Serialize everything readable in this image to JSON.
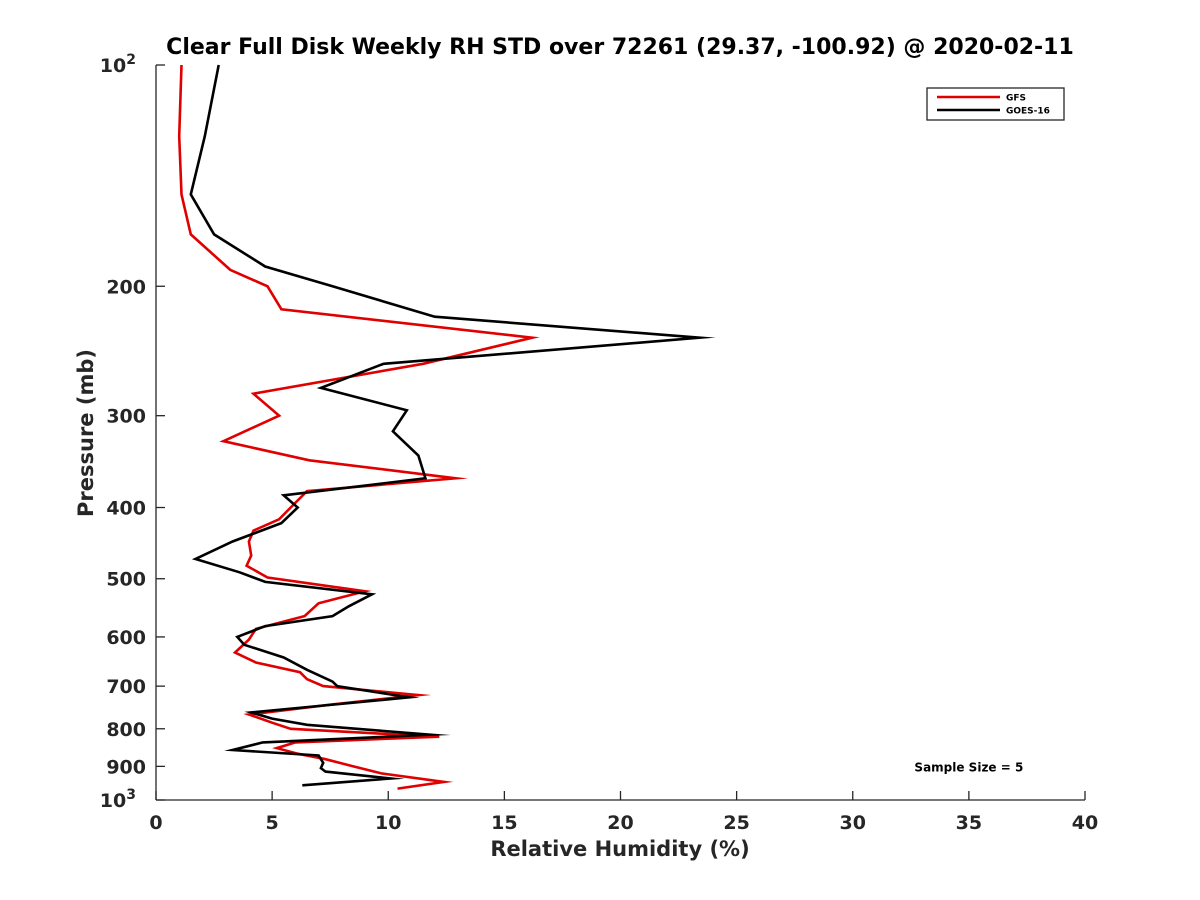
{
  "chart_data": {
    "type": "line",
    "title": "Clear Full Disk Weekly RH STD over 72261 (29.37, -100.92) @ 2020-02-11",
    "xlabel": "Relative Humidity (%)",
    "ylabel": "Pressure (mb)",
    "xlim": [
      0,
      40
    ],
    "ylim": [
      100,
      1000
    ],
    "y_scale": "log",
    "y_reversed": true,
    "grid": false,
    "legend_position": "top-right",
    "x_ticks": [
      0,
      5,
      10,
      15,
      20,
      25,
      30,
      35,
      40
    ],
    "x_tick_labels": [
      "0",
      "5",
      "10",
      "15",
      "20",
      "25",
      "30",
      "35",
      "40"
    ],
    "y_ticks": [
      {
        "value": 100,
        "base": "10",
        "exp": "2"
      },
      {
        "value": 200,
        "label": "200"
      },
      {
        "value": 300,
        "label": "300"
      },
      {
        "value": 400,
        "label": "400"
      },
      {
        "value": 500,
        "label": "500"
      },
      {
        "value": 600,
        "label": "600"
      },
      {
        "value": 700,
        "label": "700"
      },
      {
        "value": 800,
        "label": "800"
      },
      {
        "value": 900,
        "label": "900"
      },
      {
        "value": 1000,
        "base": "10",
        "exp": "3"
      }
    ],
    "series": [
      {
        "name": "GFS",
        "color": "#e00000",
        "points": [
          [
            1.1,
            100
          ],
          [
            1.0,
            125
          ],
          [
            1.1,
            150
          ],
          [
            1.5,
            170
          ],
          [
            3.2,
            190
          ],
          [
            4.8,
            200
          ],
          [
            5.4,
            215
          ],
          [
            16.2,
            235
          ],
          [
            11.5,
            255
          ],
          [
            4.2,
            280
          ],
          [
            5.3,
            300
          ],
          [
            2.9,
            325
          ],
          [
            6.6,
            345
          ],
          [
            12.9,
            365
          ],
          [
            6.5,
            380
          ],
          [
            5.8,
            400
          ],
          [
            5.3,
            415
          ],
          [
            4.2,
            430
          ],
          [
            4.0,
            445
          ],
          [
            4.1,
            465
          ],
          [
            3.9,
            480
          ],
          [
            4.8,
            498
          ],
          [
            9.0,
            520
          ],
          [
            7.0,
            540
          ],
          [
            6.4,
            562
          ],
          [
            4.3,
            585
          ],
          [
            4.0,
            605
          ],
          [
            3.4,
            630
          ],
          [
            4.3,
            650
          ],
          [
            6.2,
            670
          ],
          [
            6.5,
            685
          ],
          [
            7.2,
            700
          ],
          [
            11.3,
            720
          ],
          [
            7.5,
            742
          ],
          [
            4.0,
            765
          ],
          [
            5.0,
            785
          ],
          [
            5.8,
            800
          ],
          [
            12.2,
            820
          ],
          [
            6.0,
            835
          ],
          [
            5.2,
            850
          ],
          [
            6.1,
            865
          ],
          [
            7.3,
            880
          ],
          [
            8.5,
            900
          ],
          [
            9.7,
            920
          ],
          [
            12.4,
            945
          ],
          [
            10.4,
            965
          ]
        ]
      },
      {
        "name": "GOES-16",
        "color": "#000000",
        "points": [
          [
            2.7,
            100
          ],
          [
            2.1,
            125
          ],
          [
            1.5,
            150
          ],
          [
            2.5,
            170
          ],
          [
            4.7,
            188
          ],
          [
            7.6,
            200
          ],
          [
            12.0,
            220
          ],
          [
            23.4,
            235
          ],
          [
            9.8,
            255
          ],
          [
            7.1,
            275
          ],
          [
            10.8,
            295
          ],
          [
            10.2,
            315
          ],
          [
            11.3,
            340
          ],
          [
            11.6,
            365
          ],
          [
            5.5,
            385
          ],
          [
            6.1,
            400
          ],
          [
            5.4,
            420
          ],
          [
            3.3,
            445
          ],
          [
            1.7,
            470
          ],
          [
            3.6,
            490
          ],
          [
            4.7,
            505
          ],
          [
            9.3,
            525
          ],
          [
            8.3,
            545
          ],
          [
            7.6,
            562
          ],
          [
            4.7,
            580
          ],
          [
            3.5,
            600
          ],
          [
            3.8,
            615
          ],
          [
            5.5,
            640
          ],
          [
            6.5,
            665
          ],
          [
            7.6,
            690
          ],
          [
            7.8,
            700
          ],
          [
            10.9,
            725
          ],
          [
            7.0,
            745
          ],
          [
            4.1,
            760
          ],
          [
            5.0,
            775
          ],
          [
            6.5,
            790
          ],
          [
            11.8,
            815
          ],
          [
            4.6,
            835
          ],
          [
            3.3,
            855
          ],
          [
            7.0,
            870
          ],
          [
            7.2,
            890
          ],
          [
            7.1,
            905
          ],
          [
            7.3,
            915
          ],
          [
            10.1,
            935
          ],
          [
            6.3,
            955
          ]
        ]
      }
    ],
    "annotations": [
      {
        "text": "Sample Size = 5",
        "x": 35,
        "y": 900
      }
    ]
  }
}
